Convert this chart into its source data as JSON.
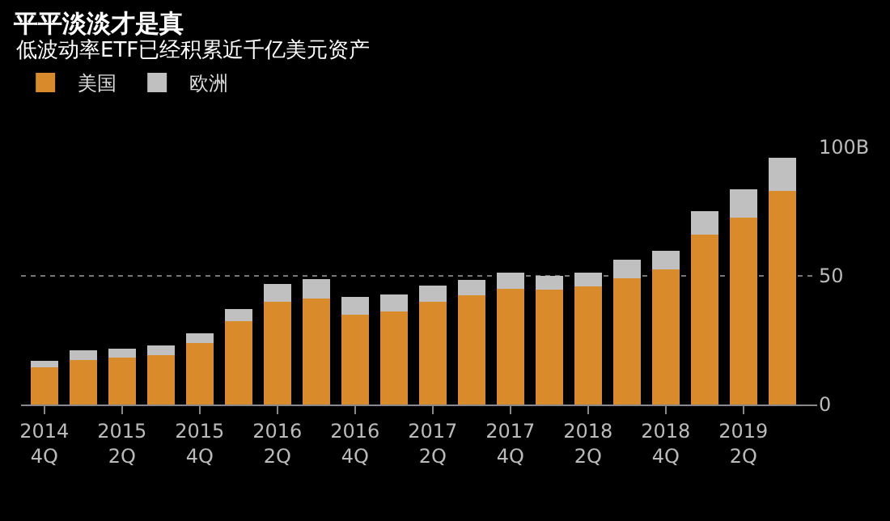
{
  "chart_data": {
    "type": "bar",
    "title": "平平淡淡才是真",
    "subtitle": "低波动率ETF已经积累近千亿美元资产",
    "categories": [
      "2014\n4Q",
      null,
      "2015\n2Q",
      null,
      "2015\n4Q",
      null,
      "2016\n2Q",
      null,
      "2016\n4Q",
      null,
      "2017\n2Q",
      null,
      "2017\n4Q",
      null,
      "2018\n2Q",
      null,
      "2018\n4Q",
      null,
      "2019\n2Q",
      null
    ],
    "series": [
      {
        "name": "美国",
        "color": "#d98b2b",
        "values": [
          14.4,
          17.2,
          18.2,
          19.3,
          23.9,
          32.4,
          40.0,
          41.1,
          35.0,
          36.2,
          40.0,
          42.4,
          45.1,
          44.7,
          46.0,
          49.2,
          52.5,
          65.9,
          72.7,
          83.1
        ]
      },
      {
        "name": "欧洲",
        "color": "#c0c0c0",
        "values": [
          2.5,
          3.8,
          3.4,
          3.8,
          3.9,
          4.7,
          6.8,
          7.8,
          6.7,
          6.6,
          6.2,
          5.9,
          6.2,
          5.3,
          5.3,
          7.0,
          7.4,
          9.3,
          10.8,
          12.9
        ]
      }
    ],
    "stacked": true,
    "ylim": [
      0,
      100
    ],
    "yticks": [
      0,
      50,
      {
        "value": 100,
        "label": "100B"
      }
    ],
    "grid": "y",
    "legend": "top left"
  }
}
